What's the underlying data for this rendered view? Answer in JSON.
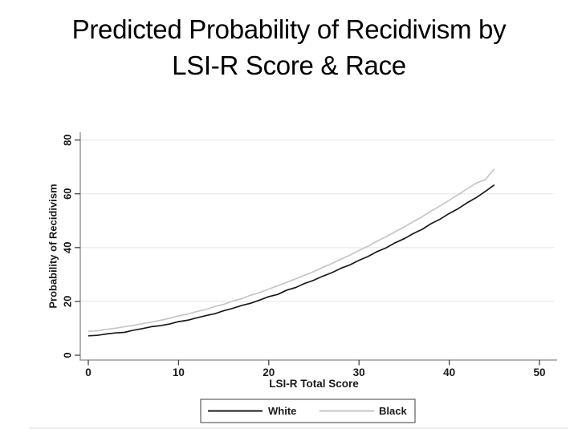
{
  "slide": {
    "title_line1": "Predicted Probability of Recidivism by",
    "title_line2": "LSI-R Score & Race"
  },
  "chart_data": {
    "type": "line",
    "title": "",
    "xlabel": "LSI-R Total Score",
    "ylabel": "Probability of Recidivism",
    "xlim": [
      0,
      50
    ],
    "ylim": [
      0,
      80
    ],
    "x_ticks": [
      0,
      10,
      20,
      30,
      40,
      50
    ],
    "y_ticks": [
      0,
      20,
      40,
      60,
      80
    ],
    "grid": "horizontal-light",
    "legend_position": "bottom-center-boxed",
    "x": [
      0,
      1,
      2,
      3,
      4,
      5,
      6,
      7,
      8,
      9,
      10,
      11,
      12,
      13,
      14,
      15,
      16,
      17,
      18,
      19,
      20,
      21,
      22,
      23,
      24,
      25,
      26,
      27,
      28,
      29,
      30,
      31,
      32,
      33,
      34,
      35,
      36,
      37,
      38,
      39,
      40,
      41,
      42,
      43,
      44,
      45
    ],
    "series": [
      {
        "name": "White",
        "color": "#1a1a1a",
        "values": [
          7.2,
          7.4,
          7.9,
          8.3,
          8.5,
          9.3,
          9.9,
          10.6,
          11.0,
          11.6,
          12.5,
          13.0,
          13.9,
          14.7,
          15.4,
          16.5,
          17.4,
          18.5,
          19.3,
          20.5,
          21.8,
          22.6,
          24.2,
          25.2,
          26.7,
          27.9,
          29.4,
          30.7,
          32.3,
          33.6,
          35.3,
          36.7,
          38.5,
          39.9,
          41.8,
          43.3,
          45.2,
          46.8,
          48.9,
          50.6,
          52.7,
          54.5,
          56.7,
          58.6,
          60.9,
          63.3
        ]
      },
      {
        "name": "Black",
        "color": "#c6c6c6",
        "values": [
          8.9,
          9.1,
          9.6,
          10.0,
          10.6,
          11.1,
          11.7,
          12.3,
          13.0,
          13.7,
          14.6,
          15.3,
          16.2,
          17.0,
          18.1,
          18.9,
          20.1,
          21.0,
          22.3,
          23.3,
          24.6,
          25.8,
          27.1,
          28.4,
          29.8,
          31.1,
          32.7,
          34.1,
          35.7,
          37.2,
          39.0,
          40.5,
          42.4,
          44.0,
          45.9,
          47.7,
          49.6,
          51.5,
          53.6,
          55.5,
          57.6,
          59.7,
          61.9,
          64.0,
          65.3,
          69.3
        ]
      }
    ],
    "axis_color": "#8a8a8a",
    "grid_color": "#e9e9e9",
    "tick_color": "#444444",
    "label_color": "#1a1a1a"
  }
}
